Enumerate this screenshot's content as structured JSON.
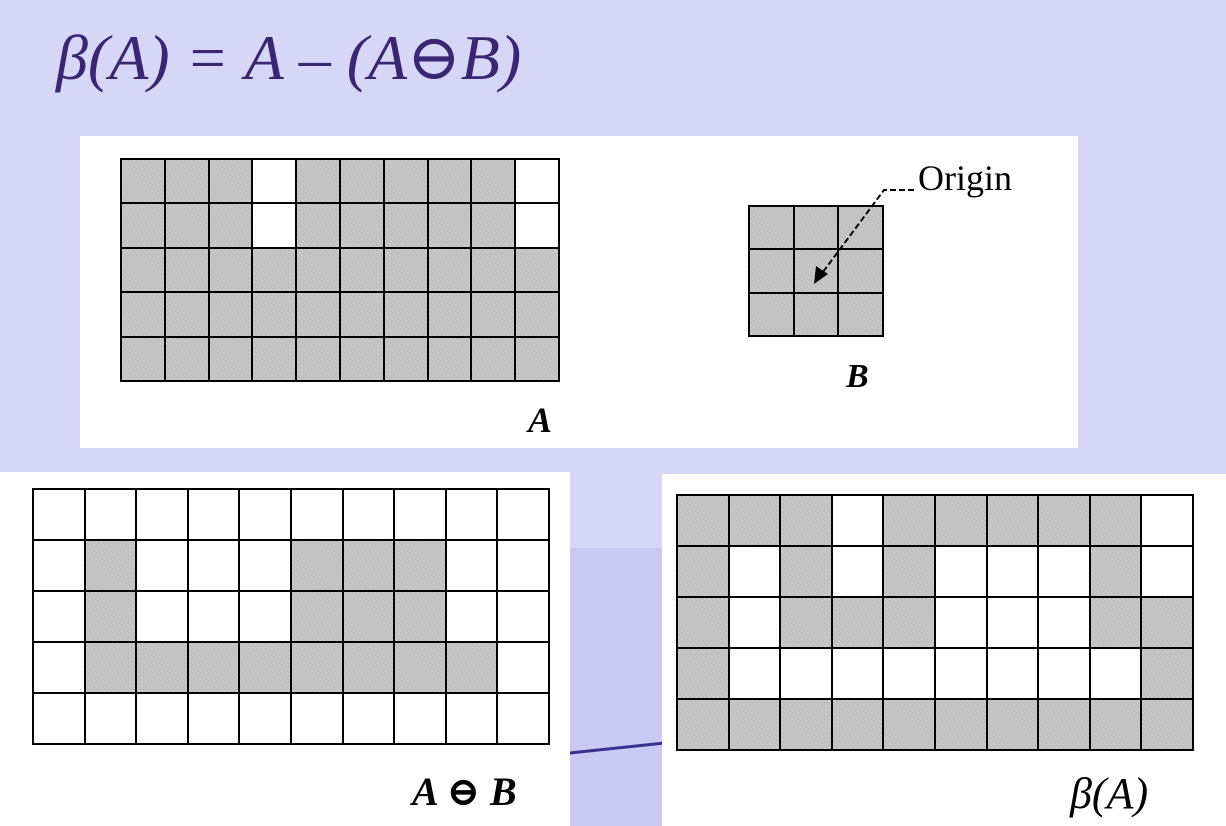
{
  "title": "β(A) = A – (A⊖B)",
  "labels": {
    "a": "A",
    "b": "B",
    "origin": "Origin",
    "a_erosion_b": "A ⊖ B",
    "beta_a": "β(A)"
  },
  "colors": {
    "background": "#d6d6f7",
    "title_text": "#3a2672",
    "filled_cell": "#c8c8c8",
    "empty_cell": "#ffffff"
  },
  "grids": {
    "A": [
      [
        1,
        1,
        1,
        0,
        1,
        1,
        1,
        1,
        1,
        0
      ],
      [
        1,
        1,
        1,
        0,
        1,
        1,
        1,
        1,
        1,
        0
      ],
      [
        1,
        1,
        1,
        1,
        1,
        1,
        1,
        1,
        1,
        1
      ],
      [
        1,
        1,
        1,
        1,
        1,
        1,
        1,
        1,
        1,
        1
      ],
      [
        1,
        1,
        1,
        1,
        1,
        1,
        1,
        1,
        1,
        1
      ]
    ],
    "B": [
      [
        1,
        1,
        1
      ],
      [
        1,
        1,
        1
      ],
      [
        1,
        1,
        1
      ]
    ],
    "A_erosion_B": [
      [
        0,
        0,
        0,
        0,
        0,
        0,
        0,
        0,
        0,
        0
      ],
      [
        0,
        1,
        0,
        0,
        0,
        1,
        1,
        1,
        0,
        0
      ],
      [
        0,
        1,
        0,
        0,
        0,
        1,
        1,
        1,
        0,
        0
      ],
      [
        0,
        1,
        1,
        1,
        1,
        1,
        1,
        1,
        1,
        0
      ],
      [
        0,
        0,
        0,
        0,
        0,
        0,
        0,
        0,
        0,
        0
      ]
    ],
    "beta_A": [
      [
        1,
        1,
        1,
        0,
        1,
        1,
        1,
        1,
        1,
        0
      ],
      [
        1,
        0,
        1,
        0,
        1,
        0,
        0,
        0,
        1,
        0
      ],
      [
        1,
        0,
        1,
        1,
        1,
        0,
        0,
        0,
        1,
        1
      ],
      [
        1,
        0,
        0,
        0,
        0,
        0,
        0,
        0,
        0,
        1
      ],
      [
        1,
        1,
        1,
        1,
        1,
        1,
        1,
        1,
        1,
        1
      ]
    ]
  }
}
